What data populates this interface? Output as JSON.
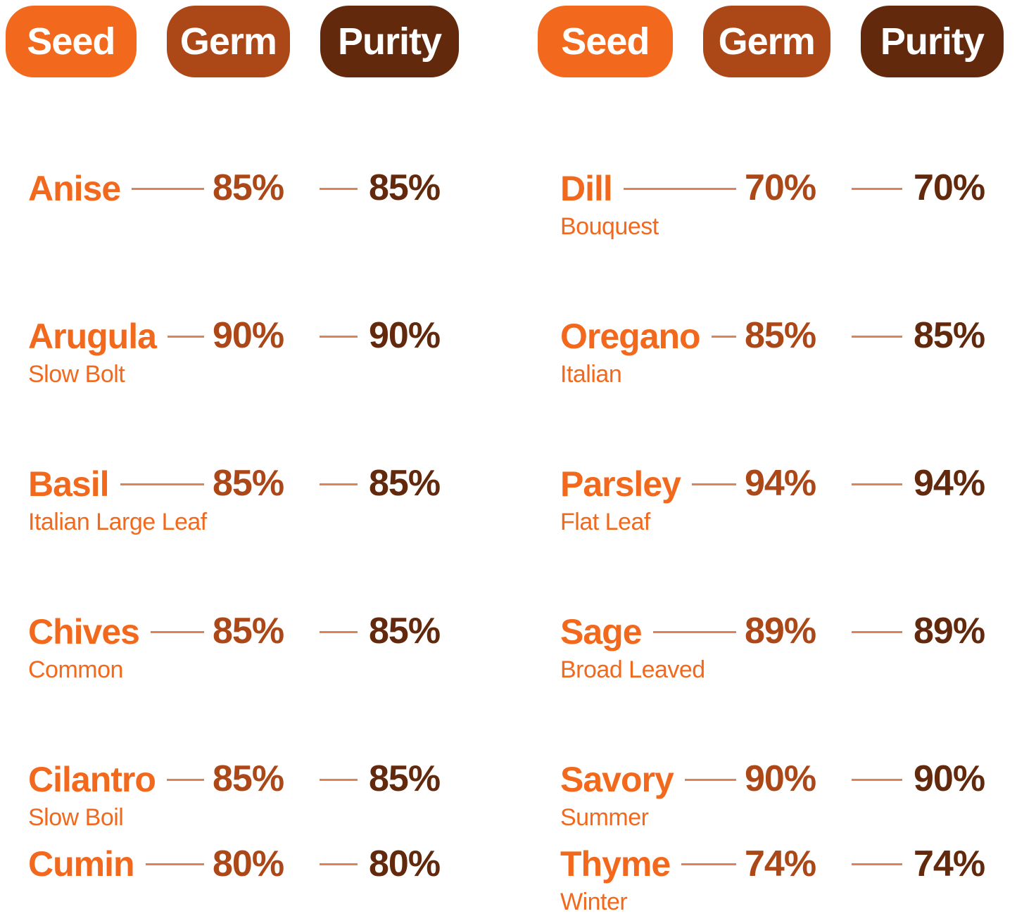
{
  "headers": {
    "seed": "Seed",
    "germ": "Germ",
    "purity": "Purity"
  },
  "colors": {
    "orange": "#F2691D",
    "rust": "#AC4718",
    "brown": "#63290D",
    "line": "#DC8455",
    "pill_text": "#FFFFFF",
    "background": "#FFFFFF"
  },
  "chart_data": {
    "type": "table",
    "title": "Seed germination and purity percentages",
    "column_headers": [
      "Seed",
      "Germ",
      "Purity"
    ],
    "layout": "two-column",
    "groups": [
      {
        "rows": [
          {
            "seed": "Anise",
            "variety": "",
            "germ": "85%",
            "purity": "85%",
            "germ_pct": 85,
            "purity_pct": 85
          },
          {
            "seed": "Arugula",
            "variety": "Slow Bolt",
            "germ": "90%",
            "purity": "90%",
            "germ_pct": 90,
            "purity_pct": 90
          },
          {
            "seed": "Basil",
            "variety": "Italian Large Leaf",
            "germ": "85%",
            "purity": "85%",
            "germ_pct": 85,
            "purity_pct": 85
          },
          {
            "seed": "Chives",
            "variety": "Common",
            "germ": "85%",
            "purity": "85%",
            "germ_pct": 85,
            "purity_pct": 85
          },
          {
            "seed": "Cilantro",
            "variety": "Slow Boil",
            "germ": "85%",
            "purity": "85%",
            "germ_pct": 85,
            "purity_pct": 85
          },
          {
            "seed": "Cumin",
            "variety": "",
            "germ": "80%",
            "purity": "80%",
            "germ_pct": 80,
            "purity_pct": 80
          }
        ]
      },
      {
        "rows": [
          {
            "seed": "Dill",
            "variety": "Bouquest",
            "germ": "70%",
            "purity": "70%",
            "germ_pct": 70,
            "purity_pct": 70
          },
          {
            "seed": "Oregano",
            "variety": "Italian",
            "germ": "85%",
            "purity": "85%",
            "germ_pct": 85,
            "purity_pct": 85
          },
          {
            "seed": "Parsley",
            "variety": "Flat Leaf",
            "germ": "94%",
            "purity": "94%",
            "germ_pct": 94,
            "purity_pct": 94
          },
          {
            "seed": "Sage",
            "variety": "Broad Leaved",
            "germ": "89%",
            "purity": "89%",
            "germ_pct": 89,
            "purity_pct": 89
          },
          {
            "seed": "Savory",
            "variety": "Summer",
            "germ": "90%",
            "purity": "90%",
            "germ_pct": 90,
            "purity_pct": 90
          },
          {
            "seed": "Thyme",
            "variety": "Winter",
            "germ": "74%",
            "purity": "74%",
            "germ_pct": 74,
            "purity_pct": 74
          }
        ]
      }
    ]
  }
}
